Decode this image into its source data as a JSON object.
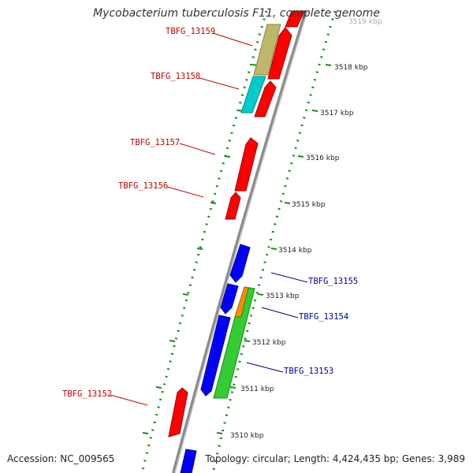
{
  "header": {
    "title": "Mycobacterium tuberculosis F11, complete genome"
  },
  "footer": {
    "accession": "Accession: NC_009565",
    "summary": "Topology: circular; Length: 4,424,435 bp; Genes: 3,989"
  },
  "colors": {
    "backbone": "#8c8c8c",
    "tick_dots": "#1a8c1a",
    "label_forward": "#c00000",
    "label_reverse": "#00008b",
    "gene_red": "#ff0000",
    "gene_blue": "#0000ff",
    "gene_olive": "#bdb76b",
    "gene_cyan": "#00cccc",
    "gene_green": "#33cc33",
    "gene_orange": "#ff8c00"
  },
  "scale": {
    "ticks": [
      {
        "label": "3519 kbp"
      },
      {
        "label": "3518 kbp"
      },
      {
        "label": "3517 kbp"
      },
      {
        "label": "3516 kbp"
      },
      {
        "label": "3515 kbp"
      },
      {
        "label": "3514 kbp"
      },
      {
        "label": "3513 kbp"
      },
      {
        "label": "3512 kbp"
      },
      {
        "label": "3511 kbp"
      },
      {
        "label": "3510 kbp"
      }
    ]
  },
  "genes": {
    "labels": [
      {
        "name": "TBFG_13159",
        "strand": "forward"
      },
      {
        "name": "TBFG_13158",
        "strand": "forward"
      },
      {
        "name": "TBFG_13157",
        "strand": "forward"
      },
      {
        "name": "TBFG_13156",
        "strand": "forward"
      },
      {
        "name": "TBFG_13155",
        "strand": "reverse"
      },
      {
        "name": "TBFG_13154",
        "strand": "reverse"
      },
      {
        "name": "TBFG_13153",
        "strand": "reverse"
      },
      {
        "name": "TBFG_13152",
        "strand": "forward"
      }
    ]
  }
}
